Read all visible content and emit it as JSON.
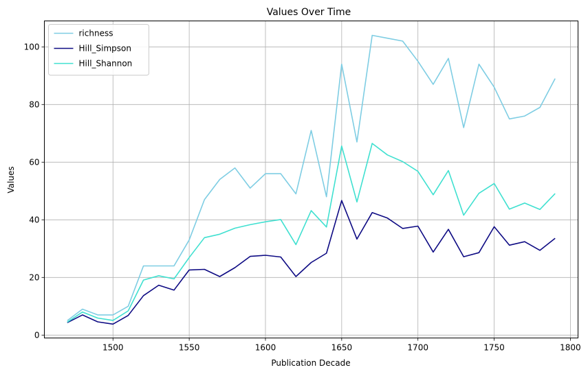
{
  "chart_data": {
    "type": "line",
    "title": "Values Over Time",
    "xlabel": "Publication Decade",
    "ylabel": "Values",
    "xlim": [
      1455,
      1805
    ],
    "ylim": [
      -1,
      109
    ],
    "xticks": [
      1500,
      1550,
      1600,
      1650,
      1700,
      1750,
      1800
    ],
    "yticks": [
      0,
      20,
      40,
      60,
      80,
      100
    ],
    "grid": true,
    "legend_position": "top-left",
    "x": [
      1470,
      1480,
      1490,
      1500,
      1510,
      1520,
      1530,
      1540,
      1550,
      1560,
      1570,
      1580,
      1590,
      1600,
      1610,
      1620,
      1630,
      1640,
      1650,
      1660,
      1670,
      1680,
      1690,
      1700,
      1710,
      1720,
      1730,
      1740,
      1750,
      1760,
      1770,
      1780,
      1790
    ],
    "series": [
      {
        "name": "richness",
        "color": "#7ecde3",
        "values": [
          5,
          9,
          7,
          7,
          10,
          24,
          24,
          24,
          33,
          47,
          54,
          58,
          51,
          56,
          56,
          49,
          71,
          48,
          94,
          67,
          104,
          103,
          102,
          95,
          87,
          96,
          72,
          94,
          86,
          75,
          76,
          79,
          89
        ]
      },
      {
        "name": "Hill_Simpson",
        "color": "#0d0a83",
        "values": [
          4.3,
          7.0,
          4.6,
          3.8,
          6.8,
          13.7,
          17.3,
          15.6,
          22.6,
          22.8,
          20.3,
          23.4,
          27.3,
          27.7,
          27.1,
          20.3,
          25.2,
          28.4,
          46.7,
          33.3,
          42.5,
          40.6,
          37.0,
          37.8,
          28.8,
          36.7,
          27.2,
          28.6,
          37.6,
          31.2,
          32.4,
          29.4,
          33.6
        ]
      },
      {
        "name": "Hill_Shannon",
        "color": "#3fe0d0",
        "values": [
          4.5,
          8.0,
          5.9,
          5.1,
          8.4,
          19.1,
          20.6,
          19.5,
          26.9,
          33.8,
          35.0,
          37.1,
          38.3,
          39.3,
          40.1,
          31.4,
          43.2,
          37.5,
          65.6,
          46.2,
          66.5,
          62.5,
          60.2,
          56.8,
          48.7,
          57.1,
          41.6,
          49.2,
          52.6,
          43.7,
          45.8,
          43.6,
          49.1
        ]
      }
    ]
  }
}
